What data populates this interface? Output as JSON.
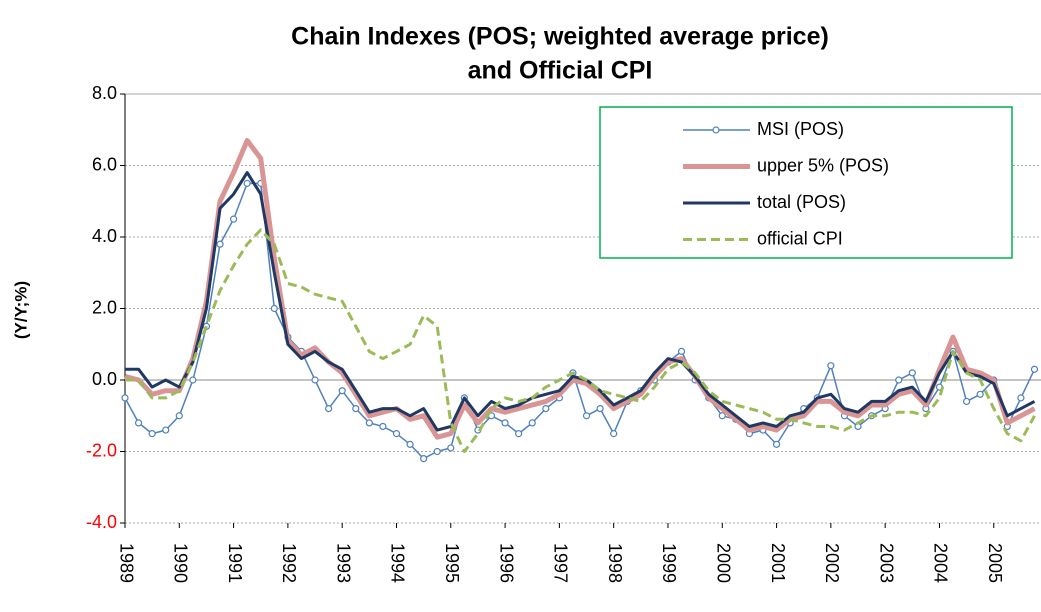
{
  "chart_data": {
    "type": "line",
    "title": [
      "Chain Indexes  (POS; weighted average price)",
      "and Official CPI"
    ],
    "y_label": "(Y/Y;%)",
    "x": [
      1989,
      1989.25,
      1989.5,
      1989.75,
      1990,
      1990.25,
      1990.5,
      1990.75,
      1991,
      1991.25,
      1991.5,
      1991.75,
      1992,
      1992.25,
      1992.5,
      1992.75,
      1993,
      1993.25,
      1993.5,
      1993.75,
      1994,
      1994.25,
      1994.5,
      1994.75,
      1995,
      1995.25,
      1995.5,
      1995.75,
      1996,
      1996.25,
      1996.5,
      1996.75,
      1997,
      1997.25,
      1997.5,
      1997.75,
      1998,
      1998.25,
      1998.5,
      1998.75,
      1999,
      1999.25,
      1999.5,
      1999.75,
      2000,
      2000.25,
      2000.5,
      2000.75,
      2001,
      2001.25,
      2001.5,
      2001.75,
      2002,
      2002.25,
      2002.5,
      2002.75,
      2003,
      2003.25,
      2003.5,
      2003.75,
      2004,
      2004.25,
      2004.5,
      2004.75,
      2005,
      2005.25,
      2005.5,
      2005.75
    ],
    "xlim": [
      1989,
      2005.87
    ],
    "xticks": [
      1989,
      1990,
      1991,
      1992,
      1993,
      1994,
      1995,
      1996,
      1997,
      1998,
      1999,
      2000,
      2001,
      2002,
      2003,
      2004,
      2005
    ],
    "ylim": [
      -4,
      8
    ],
    "yticks": [
      {
        "value": -4,
        "label": "-4.0"
      },
      {
        "value": -2,
        "label": "-2.0"
      },
      {
        "value": 0,
        "label": "0.0"
      },
      {
        "value": 2,
        "label": "2.0"
      },
      {
        "value": 4,
        "label": "4.0"
      },
      {
        "value": 6,
        "label": "6.0"
      },
      {
        "value": 8,
        "label": "8.0"
      }
    ],
    "negative_tick_color": "#ff0000",
    "grid": true,
    "legend": "upper right",
    "legend_border_color": "#00b050",
    "series": [
      {
        "name": "MSI (POS)",
        "color": "#4f81bd",
        "marker": "circle",
        "values": [
          -0.5,
          -1.2,
          -1.5,
          -1.4,
          -1.0,
          0.0,
          1.5,
          3.8,
          4.5,
          5.5,
          5.5,
          2.0,
          1.2,
          0.8,
          0.0,
          -0.8,
          -0.3,
          -0.8,
          -1.2,
          -1.3,
          -1.5,
          -1.8,
          -2.2,
          -2.0,
          -1.9,
          -0.5,
          -1.4,
          -1.0,
          -1.2,
          -1.5,
          -1.2,
          -0.8,
          -0.5,
          0.2,
          -1.0,
          -0.8,
          -1.5,
          -0.6,
          -0.3,
          0.0,
          0.5,
          0.8,
          0.0,
          -0.5,
          -1.0,
          -1.1,
          -1.5,
          -1.4,
          -1.8,
          -1.2,
          -0.8,
          -0.5,
          0.4,
          -1.0,
          -1.3,
          -1.0,
          -0.8,
          0.0,
          0.2,
          -0.8,
          -0.2,
          0.8,
          -0.6,
          -0.4,
          0.0,
          -1.3,
          -0.5,
          0.3
        ]
      },
      {
        "name": "upper 5% (POS)",
        "color": "#d99594",
        "width": 5,
        "values": [
          0.1,
          0.0,
          -0.4,
          -0.3,
          -0.3,
          0.6,
          2.2,
          5.0,
          5.8,
          6.7,
          6.2,
          3.4,
          1.1,
          0.7,
          0.9,
          0.5,
          0.2,
          -0.4,
          -1.0,
          -0.9,
          -0.8,
          -1.1,
          -1.0,
          -1.6,
          -1.5,
          -0.7,
          -1.2,
          -0.8,
          -0.9,
          -0.8,
          -0.7,
          -0.6,
          -0.4,
          0.0,
          -0.1,
          -0.4,
          -0.8,
          -0.6,
          -0.4,
          0.1,
          0.5,
          0.6,
          0.1,
          -0.5,
          -0.8,
          -1.1,
          -1.4,
          -1.3,
          -1.4,
          -1.1,
          -1.0,
          -0.6,
          -0.6,
          -0.9,
          -1.0,
          -0.7,
          -0.7,
          -0.4,
          -0.3,
          -0.7,
          0.3,
          1.2,
          0.3,
          0.2,
          0.0,
          -1.2,
          -1.0,
          -0.8
        ]
      },
      {
        "name": "total (POS)",
        "color": "#1f3864",
        "width": 3,
        "values": [
          0.3,
          0.3,
          -0.2,
          0.0,
          -0.2,
          0.5,
          2.0,
          4.8,
          5.2,
          5.8,
          5.2,
          3.0,
          1.0,
          0.6,
          0.8,
          0.5,
          0.3,
          -0.3,
          -0.9,
          -0.8,
          -0.8,
          -1.0,
          -0.8,
          -1.4,
          -1.3,
          -0.5,
          -1.0,
          -0.6,
          -0.8,
          -0.7,
          -0.5,
          -0.4,
          -0.3,
          0.1,
          0.0,
          -0.3,
          -0.7,
          -0.5,
          -0.3,
          0.2,
          0.6,
          0.5,
          0.1,
          -0.4,
          -0.7,
          -1.0,
          -1.3,
          -1.2,
          -1.3,
          -1.0,
          -0.9,
          -0.5,
          -0.4,
          -0.8,
          -0.9,
          -0.6,
          -0.6,
          -0.3,
          -0.2,
          -0.6,
          0.2,
          0.8,
          0.2,
          0.1,
          -0.1,
          -1.0,
          -0.8,
          -0.6
        ]
      },
      {
        "name": "official CPI",
        "color": "#9bbb59",
        "width": 3,
        "dashed": true,
        "values": [
          0.0,
          0.0,
          -0.5,
          -0.5,
          -0.3,
          0.5,
          1.5,
          2.5,
          3.2,
          3.8,
          4.2,
          3.8,
          2.7,
          2.6,
          2.4,
          2.3,
          2.2,
          1.5,
          0.8,
          0.6,
          0.8,
          1.0,
          1.8,
          1.5,
          -1.2,
          -2.0,
          -1.5,
          -0.8,
          -0.5,
          -0.6,
          -0.5,
          -0.2,
          0.0,
          0.2,
          0.0,
          -0.3,
          -0.4,
          -0.5,
          -0.6,
          -0.2,
          0.3,
          0.5,
          0.2,
          -0.3,
          -0.6,
          -0.7,
          -0.8,
          -0.9,
          -1.1,
          -1.1,
          -1.2,
          -1.3,
          -1.3,
          -1.4,
          -1.2,
          -1.0,
          -1.0,
          -0.9,
          -0.9,
          -1.0,
          -0.5,
          0.8,
          0.2,
          0.0,
          -0.8,
          -1.5,
          -1.7,
          -1.0
        ]
      }
    ]
  }
}
